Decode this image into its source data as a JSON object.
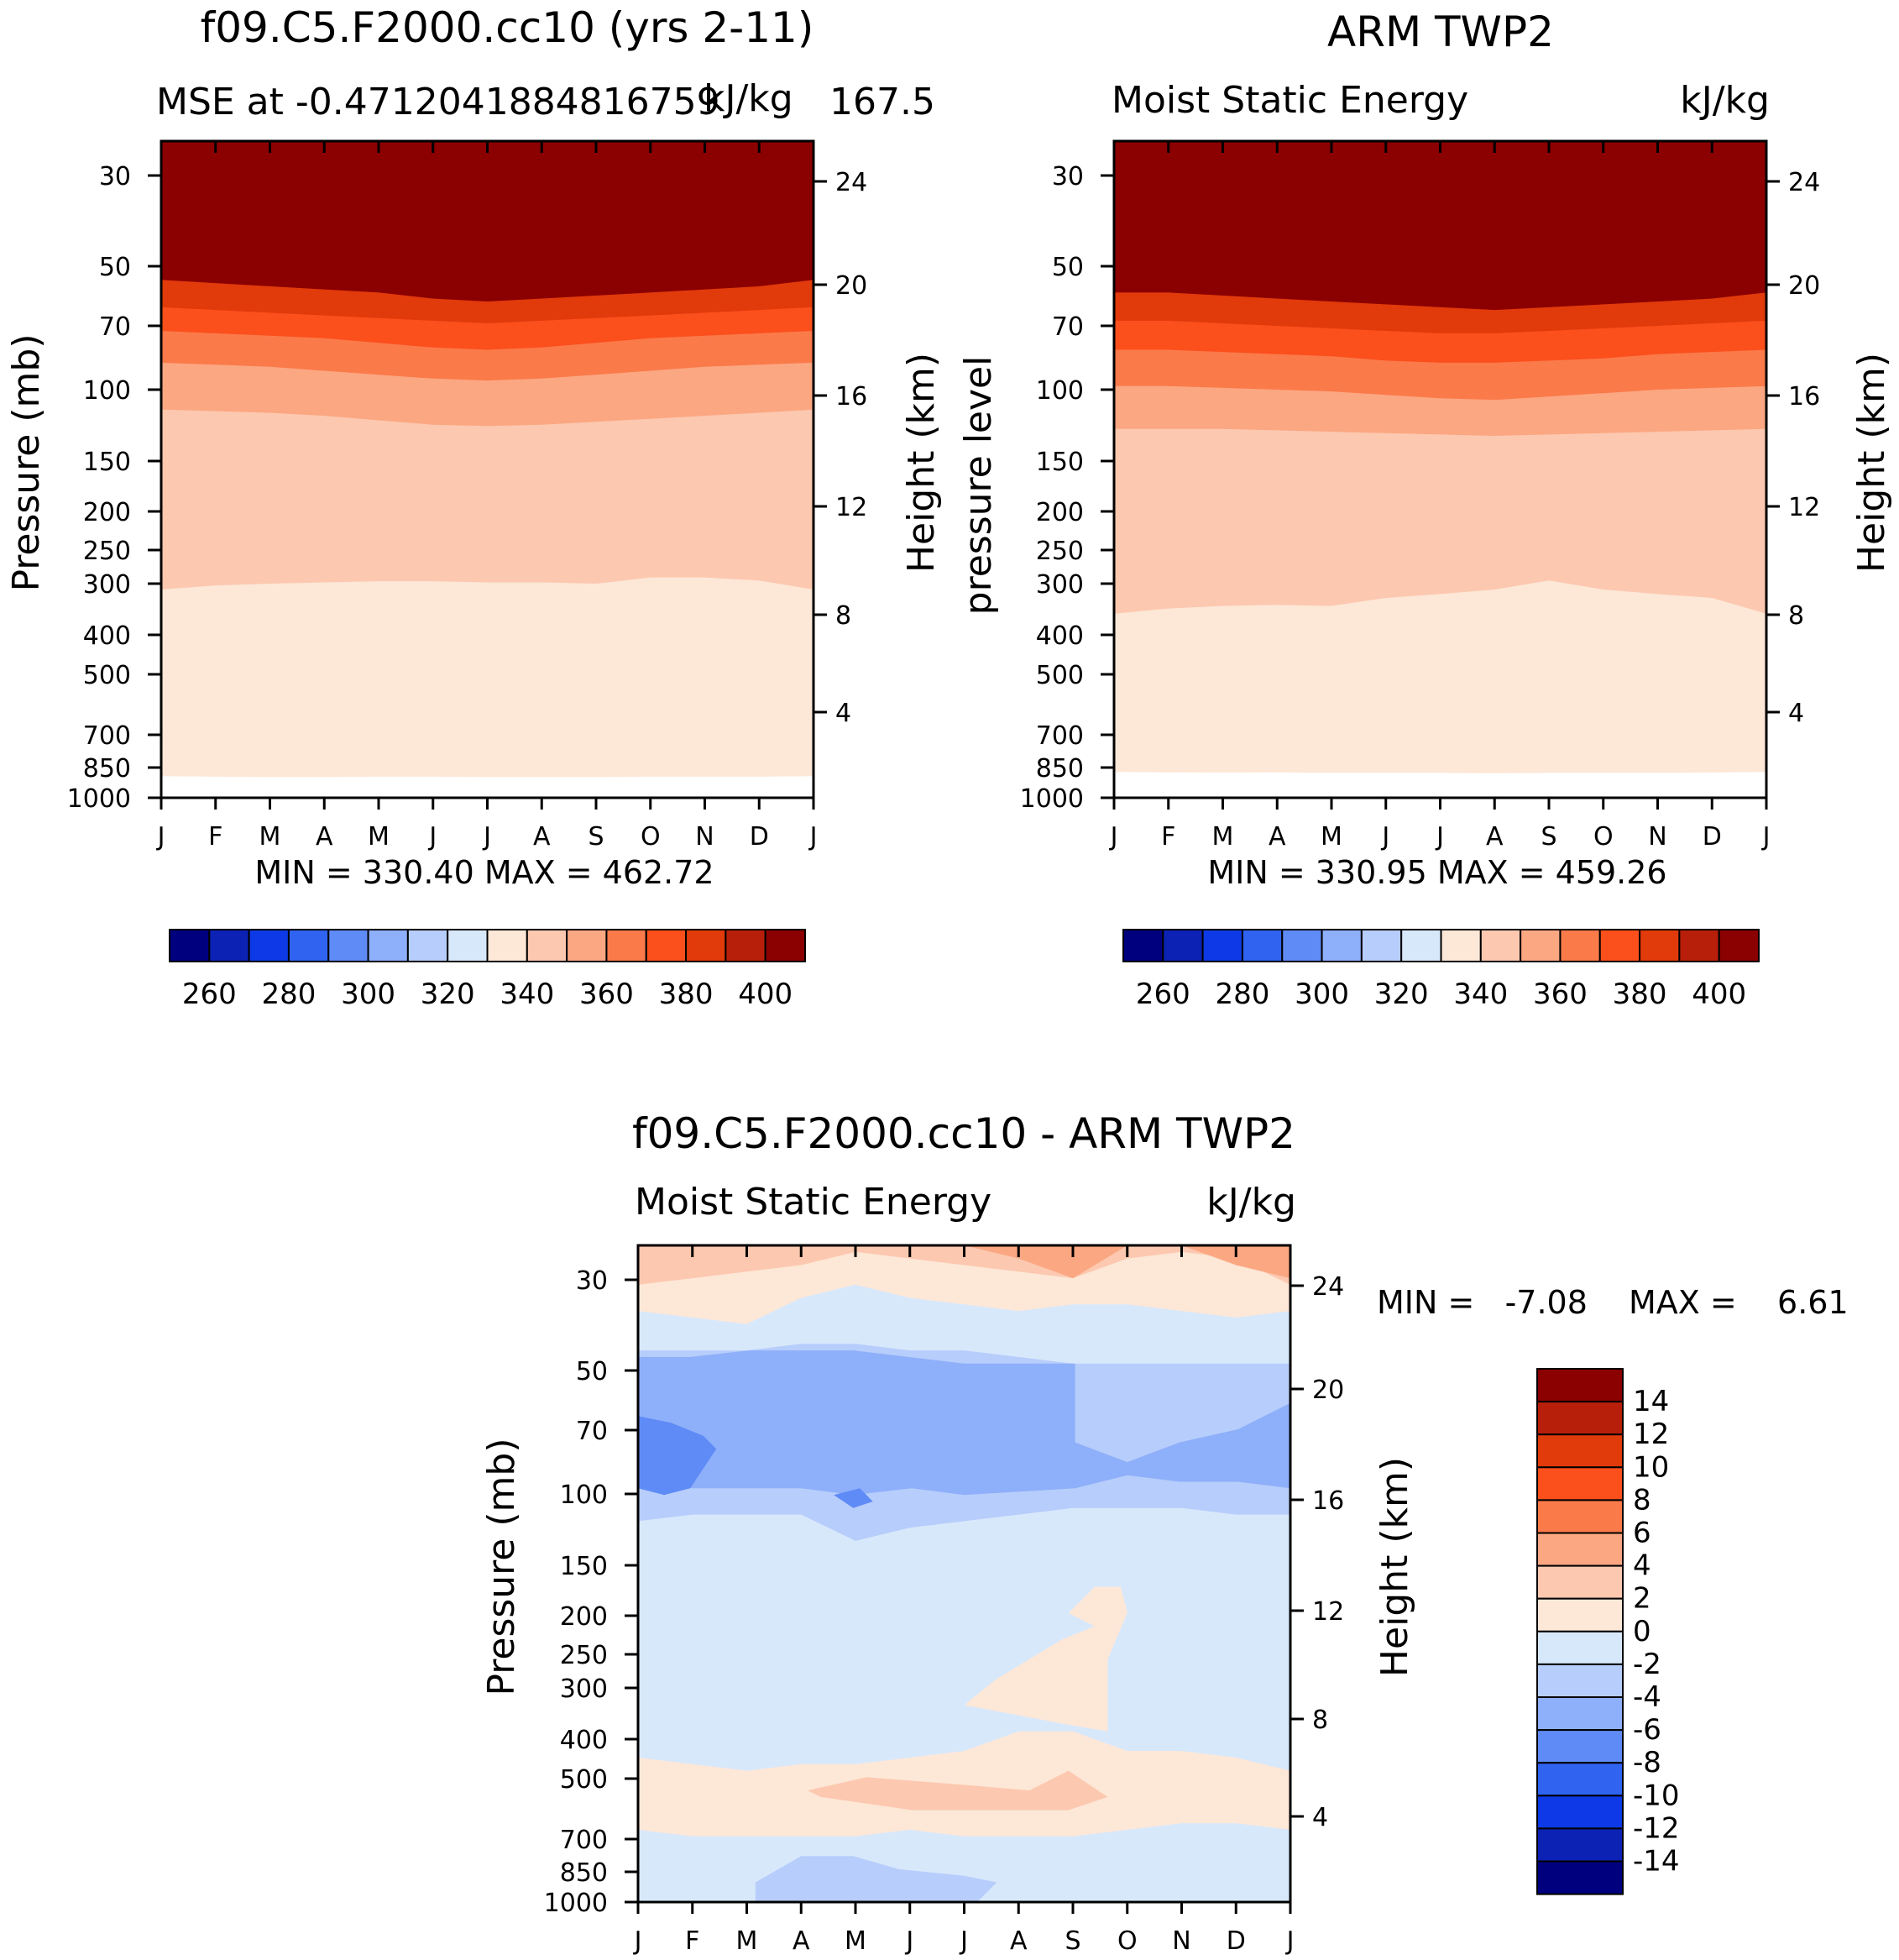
{
  "chart_data": [
    {
      "type": "heatmap",
      "title": "f09.C5.F2000.cc10 (yrs 2-11)",
      "subtitle_left": "MSE at -0.4712041884816759",
      "subtitle_right_overlap_a": "kJ/kg",
      "subtitle_right_overlap_b": "167.5",
      "ylabel": "Pressure (mb)",
      "y2label": "Height (km)",
      "x_ticks": [
        "J",
        "F",
        "M",
        "A",
        "M",
        "J",
        "J",
        "A",
        "S",
        "O",
        "N",
        "D",
        "J"
      ],
      "y_ticks": [
        "30",
        "50",
        "70",
        "100",
        "150",
        "200",
        "250",
        "300",
        "400",
        "500",
        "700",
        "850",
        "1000"
      ],
      "y2_ticks": [
        "24",
        "20",
        "16",
        "12",
        "8",
        "4"
      ],
      "stats": "MIN = 330.40 MAX = 462.72",
      "colorbar_labels": [
        "260",
        "280",
        "300",
        "320",
        "340",
        "360",
        "380",
        "400"
      ],
      "contour_levels_kJ_per_kg": [
        340,
        350,
        360,
        370,
        380,
        390,
        400
      ],
      "boundary_pressure_mb_by_month": {
        "b340": [
          890,
          893,
          895,
          895,
          893,
          893,
          895,
          895,
          895,
          893,
          893,
          893,
          890
        ],
        "b350": [
          310,
          303,
          300,
          298,
          296,
          296,
          298,
          298,
          300,
          290,
          290,
          295,
          310
        ],
        "b360": [
          112,
          113,
          114,
          116,
          119,
          122,
          123,
          122,
          120,
          118,
          116,
          114,
          112
        ],
        "b370": [
          86,
          87,
          88,
          90,
          92,
          94,
          95,
          94,
          92,
          90,
          88,
          87,
          86
        ],
        "b380": [
          72,
          73,
          74,
          75,
          77,
          79,
          80,
          79,
          77,
          75,
          74,
          73,
          72
        ],
        "b390": [
          63,
          64,
          65,
          66,
          67,
          68,
          69,
          68,
          67,
          66,
          65,
          64,
          63
        ],
        "b400": [
          54,
          55,
          56,
          57,
          58,
          60,
          61,
          60,
          59,
          58,
          57,
          56,
          54
        ]
      }
    },
    {
      "type": "heatmap",
      "title": "ARM TWP2",
      "subtitle_left": "Moist Static Energy",
      "subtitle_right": "kJ/kg",
      "ylabel": "pressure level",
      "y2label": "Height (km)",
      "x_ticks": [
        "J",
        "F",
        "M",
        "A",
        "M",
        "J",
        "J",
        "A",
        "S",
        "O",
        "N",
        "D",
        "J"
      ],
      "y_ticks": [
        "30",
        "50",
        "70",
        "100",
        "150",
        "200",
        "250",
        "300",
        "400",
        "500",
        "700",
        "850",
        "1000"
      ],
      "y2_ticks": [
        "24",
        "20",
        "16",
        "12",
        "8",
        "4"
      ],
      "stats": "MIN = 330.95 MAX = 459.26",
      "colorbar_labels": [
        "260",
        "280",
        "300",
        "320",
        "340",
        "360",
        "380",
        "400"
      ],
      "contour_levels_kJ_per_kg": [
        340,
        350,
        360,
        370,
        380,
        390,
        400
      ],
      "boundary_pressure_mb_by_month": {
        "b340": [
          870,
          872,
          873,
          872,
          875,
          875,
          875,
          876,
          875,
          875,
          874,
          873,
          870
        ],
        "b350": [
          355,
          345,
          340,
          338,
          340,
          325,
          318,
          310,
          295,
          310,
          318,
          325,
          355
        ],
        "b360": [
          125,
          125,
          125,
          126,
          127,
          128,
          129,
          130,
          129,
          128,
          127,
          126,
          125
        ],
        "b370": [
          98,
          98,
          99,
          100,
          101,
          103,
          105,
          106,
          104,
          102,
          100,
          99,
          98
        ],
        "b380": [
          80,
          80,
          81,
          82,
          83,
          85,
          86,
          86,
          85,
          84,
          82,
          81,
          80
        ],
        "b390": [
          68,
          68,
          69,
          70,
          71,
          72,
          73,
          73,
          72,
          71,
          70,
          69,
          68
        ],
        "b400": [
          58,
          58,
          59,
          60,
          61,
          62,
          63,
          64,
          63,
          62,
          61,
          60,
          58
        ]
      }
    },
    {
      "type": "heatmap",
      "title": "f09.C5.F2000.cc10 - ARM TWP2",
      "subtitle_left": "Moist Static Energy",
      "subtitle_right": "kJ/kg",
      "ylabel": "Pressure (mb)",
      "y2label": "Height (km)",
      "x_ticks": [
        "J",
        "F",
        "M",
        "A",
        "M",
        "J",
        "J",
        "A",
        "S",
        "O",
        "N",
        "D",
        "J"
      ],
      "y_ticks": [
        "30",
        "50",
        "70",
        "100",
        "150",
        "200",
        "250",
        "300",
        "400",
        "500",
        "700",
        "850",
        "1000"
      ],
      "y2_ticks": [
        "24",
        "20",
        "16",
        "12",
        "8",
        "4"
      ],
      "stats_min": "MIN =   -7.08",
      "stats_max": "MAX =    6.61",
      "colorbar_labels": [
        "14",
        "12",
        "10",
        "8",
        "6",
        "4",
        "2",
        "0",
        "-2",
        "-4",
        "-6",
        "-8",
        "-10",
        "-12",
        "-14"
      ],
      "region_values_kJ_per_kg": {
        "upper_positive_top": 4.5,
        "upper_positive_mid": 2.5,
        "upper_positive_low": 1,
        "upper_negative_1": -1,
        "upper_negative_2": -3,
        "core_negative": -5,
        "core_negative_max": -7,
        "mid_troposphere": -1,
        "positive_tongue": 1,
        "lower_positive_max": 2.5,
        "lower_mixed": -2
      }
    }
  ]
}
